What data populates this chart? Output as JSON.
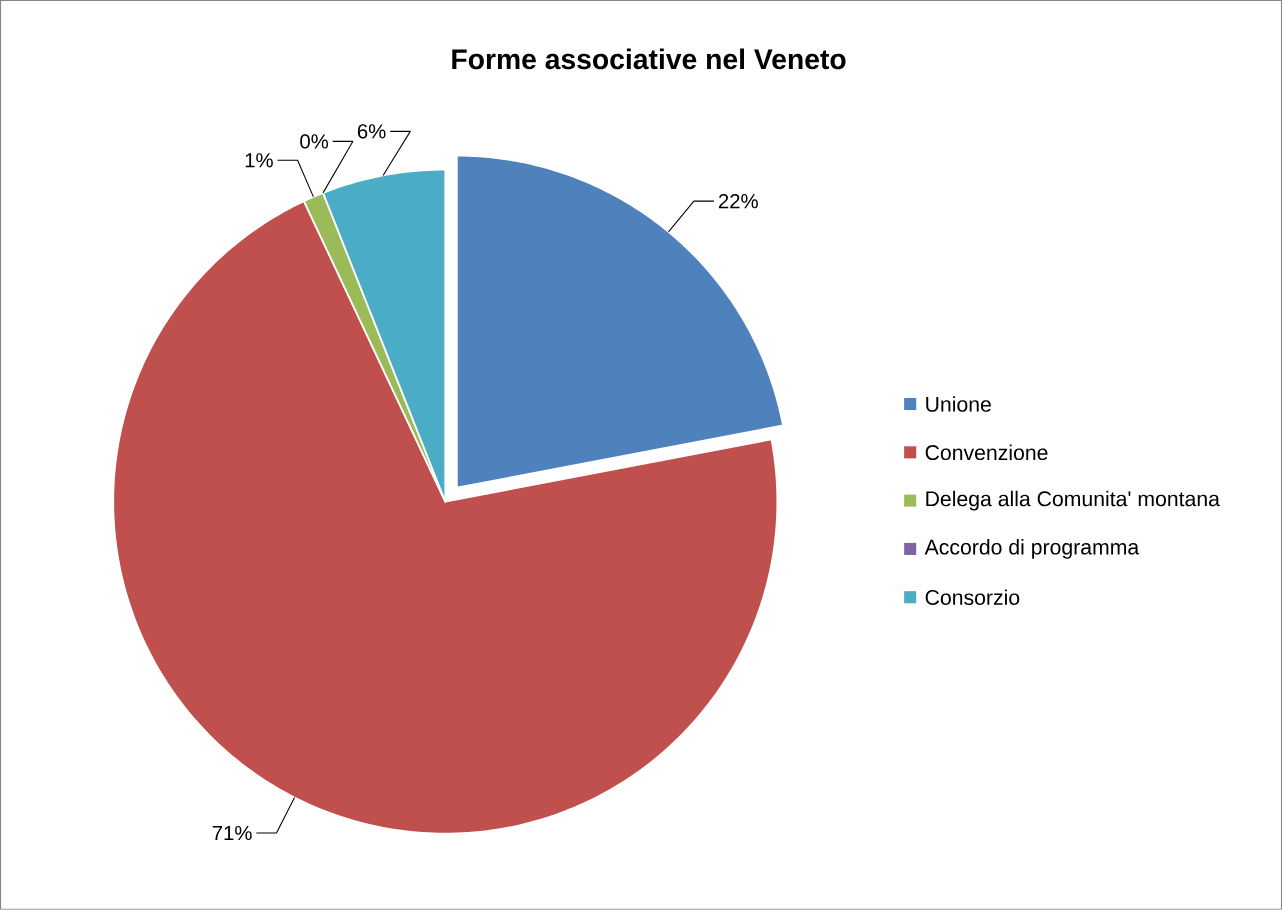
{
  "chart_data": {
    "type": "pie",
    "title": "Forme associative nel Veneto",
    "categories": [
      "Unione",
      "Convenzione",
      "Delega alla Comunita' montana",
      "Accordo di programma",
      "Consorzio"
    ],
    "values": [
      22,
      71,
      1,
      0,
      6
    ],
    "value_labels": [
      "22%",
      "71%",
      "1%",
      "0%",
      "6%"
    ],
    "colors": [
      "#4f81bd",
      "#c0504d",
      "#9bbb59",
      "#8064a2",
      "#4bacc6"
    ],
    "legend": "right"
  }
}
